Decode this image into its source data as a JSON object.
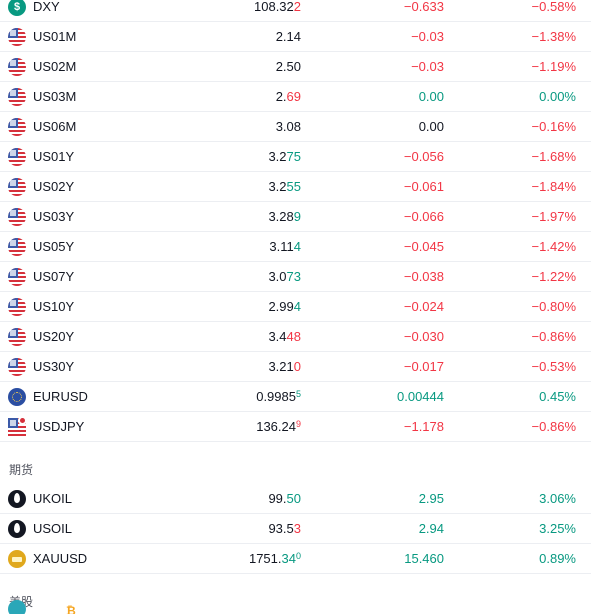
{
  "colors": {
    "negative": "#f23645",
    "positive": "#089981",
    "neutral": "#131722"
  },
  "rows_top": [
    {
      "icon": "dollar-icon",
      "symbol": "DXY",
      "last_main": "108.32",
      "last_tail": "2",
      "last_tail_color": "negative",
      "last_sup": "",
      "change": "−0.633",
      "change_color": "negative",
      "pct": "−0.58%",
      "pct_color": "negative"
    },
    {
      "icon": "us-flag-icon",
      "symbol": "US01M",
      "last_main": "2.14",
      "last_tail": "",
      "last_tail_color": "neutral",
      "last_sup": "",
      "change": "−0.03",
      "change_color": "negative",
      "pct": "−1.38%",
      "pct_color": "negative"
    },
    {
      "icon": "us-flag-icon",
      "symbol": "US02M",
      "last_main": "2.50",
      "last_tail": "",
      "last_tail_color": "neutral",
      "last_sup": "",
      "change": "−0.03",
      "change_color": "negative",
      "pct": "−1.19%",
      "pct_color": "negative"
    },
    {
      "icon": "us-flag-icon",
      "symbol": "US03M",
      "last_main": "2.",
      "last_tail": "69",
      "last_tail_color": "negative",
      "last_sup": "",
      "change": "0.00",
      "change_color": "positive",
      "pct": "0.00%",
      "pct_color": "positive"
    },
    {
      "icon": "us-flag-icon",
      "symbol": "US06M",
      "last_main": "3.08",
      "last_tail": "",
      "last_tail_color": "neutral",
      "last_sup": "",
      "change": "0.00",
      "change_color": "neutral",
      "pct": "−0.16%",
      "pct_color": "negative"
    },
    {
      "icon": "us-flag-icon",
      "symbol": "US01Y",
      "last_main": "3.2",
      "last_tail": "75",
      "last_tail_color": "positive",
      "last_sup": "",
      "change": "−0.056",
      "change_color": "negative",
      "pct": "−1.68%",
      "pct_color": "negative"
    },
    {
      "icon": "us-flag-icon",
      "symbol": "US02Y",
      "last_main": "3.2",
      "last_tail": "55",
      "last_tail_color": "positive",
      "last_sup": "",
      "change": "−0.061",
      "change_color": "negative",
      "pct": "−1.84%",
      "pct_color": "negative"
    },
    {
      "icon": "us-flag-icon",
      "symbol": "US03Y",
      "last_main": "3.28",
      "last_tail": "9",
      "last_tail_color": "positive",
      "last_sup": "",
      "change": "−0.066",
      "change_color": "negative",
      "pct": "−1.97%",
      "pct_color": "negative"
    },
    {
      "icon": "us-flag-icon",
      "symbol": "US05Y",
      "last_main": "3.11",
      "last_tail": "4",
      "last_tail_color": "positive",
      "last_sup": "",
      "change": "−0.045",
      "change_color": "negative",
      "pct": "−1.42%",
      "pct_color": "negative"
    },
    {
      "icon": "us-flag-icon",
      "symbol": "US07Y",
      "last_main": "3.0",
      "last_tail": "73",
      "last_tail_color": "positive",
      "last_sup": "",
      "change": "−0.038",
      "change_color": "negative",
      "pct": "−1.22%",
      "pct_color": "negative"
    },
    {
      "icon": "us-flag-icon",
      "symbol": "US10Y",
      "last_main": "2.99",
      "last_tail": "4",
      "last_tail_color": "positive",
      "last_sup": "",
      "change": "−0.024",
      "change_color": "negative",
      "pct": "−0.80%",
      "pct_color": "negative"
    },
    {
      "icon": "us-flag-icon",
      "symbol": "US20Y",
      "last_main": "3.4",
      "last_tail": "48",
      "last_tail_color": "negative",
      "last_sup": "",
      "change": "−0.030",
      "change_color": "negative",
      "pct": "−0.86%",
      "pct_color": "negative"
    },
    {
      "icon": "us-flag-icon",
      "symbol": "US30Y",
      "last_main": "3.21",
      "last_tail": "0",
      "last_tail_color": "negative",
      "last_sup": "",
      "change": "−0.017",
      "change_color": "negative",
      "pct": "−0.53%",
      "pct_color": "negative"
    },
    {
      "icon": "eu-flag-icon",
      "symbol": "EURUSD",
      "last_main": "0.9985",
      "last_tail": "",
      "last_tail_color": "neutral",
      "last_sup": "5",
      "last_sup_color": "positive",
      "change": "0.00444",
      "change_color": "positive",
      "pct": "0.45%",
      "pct_color": "positive"
    },
    {
      "icon": "us-flag-icon",
      "symbol": "USDJPY",
      "last_main": "136.24",
      "last_tail": "",
      "last_tail_color": "neutral",
      "last_sup": "9",
      "last_sup_color": "negative",
      "change": "−1.178",
      "change_color": "negative",
      "pct": "−0.86%",
      "pct_color": "negative"
    }
  ],
  "section_futures": "期货",
  "rows_futures": [
    {
      "icon": "oil-drop-icon",
      "symbol": "UKOIL",
      "last_main": "99.",
      "last_tail": "50",
      "last_tail_color": "positive",
      "last_sup": "",
      "change": "2.95",
      "change_color": "positive",
      "pct": "3.06%",
      "pct_color": "positive"
    },
    {
      "icon": "oil-drop-icon",
      "symbol": "USOIL",
      "last_main": "93.5",
      "last_tail": "3",
      "last_tail_color": "negative",
      "last_sup": "",
      "change": "2.94",
      "change_color": "positive",
      "pct": "3.25%",
      "pct_color": "positive"
    },
    {
      "icon": "gold-bar-icon",
      "symbol": "XAUUSD",
      "last_main": "1751.",
      "last_tail": "34",
      "last_tail_color": "positive",
      "last_sup": "0",
      "last_sup_color": "positive",
      "change": "15.460",
      "change_color": "positive",
      "pct": "0.89%",
      "pct_color": "positive"
    }
  ],
  "section_stocks": "美股"
}
